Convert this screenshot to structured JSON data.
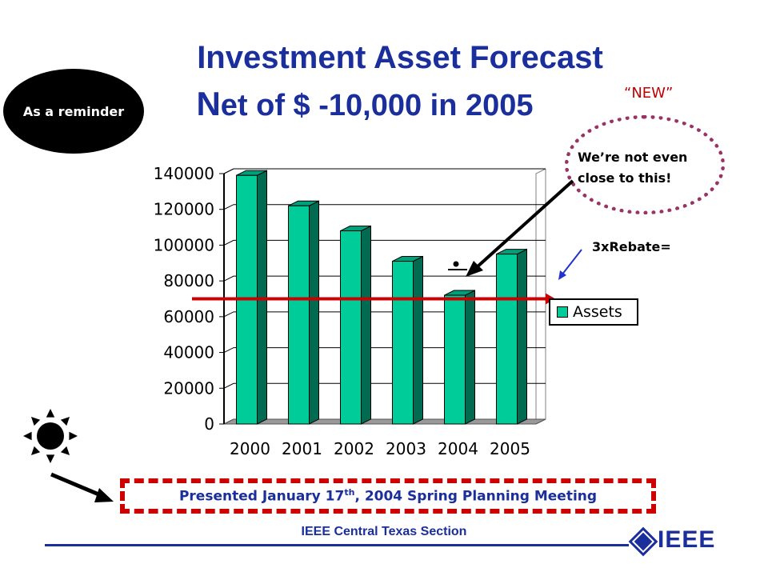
{
  "title": {
    "line1": "Investment Asset Forecast",
    "line2": "Net of $ -10,000 in 2005"
  },
  "badge": {
    "reminder": "As a reminder"
  },
  "annotations": {
    "new_label": "“NEW”",
    "bubble_line1": "We’re not even",
    "bubble_line2": "close to this!",
    "rebate_label": "3xRebate=",
    "presented": "Presented January 17th, 2004 Spring Planning Meeting"
  },
  "footer": {
    "section": "IEEE Central Texas Section",
    "logo": "IEEE"
  },
  "colors": {
    "title": "#1a2e9c",
    "bar": "#00cc99",
    "line": "#cc0000",
    "accent": "#993366"
  },
  "chart_data": {
    "type": "bar",
    "categories": [
      "2000",
      "2001",
      "2002",
      "2003",
      "2004",
      "2005"
    ],
    "series": [
      {
        "name": "Assets",
        "values": [
          139000,
          122000,
          108000,
          91000,
          72000,
          95000
        ]
      }
    ],
    "yticks": [
      "0",
      "20000",
      "40000",
      "60000",
      "80000",
      "100000",
      "120000",
      "140000"
    ],
    "ylim": [
      0,
      140000
    ],
    "reference_line": 70000,
    "grid": true,
    "legend": "right"
  }
}
